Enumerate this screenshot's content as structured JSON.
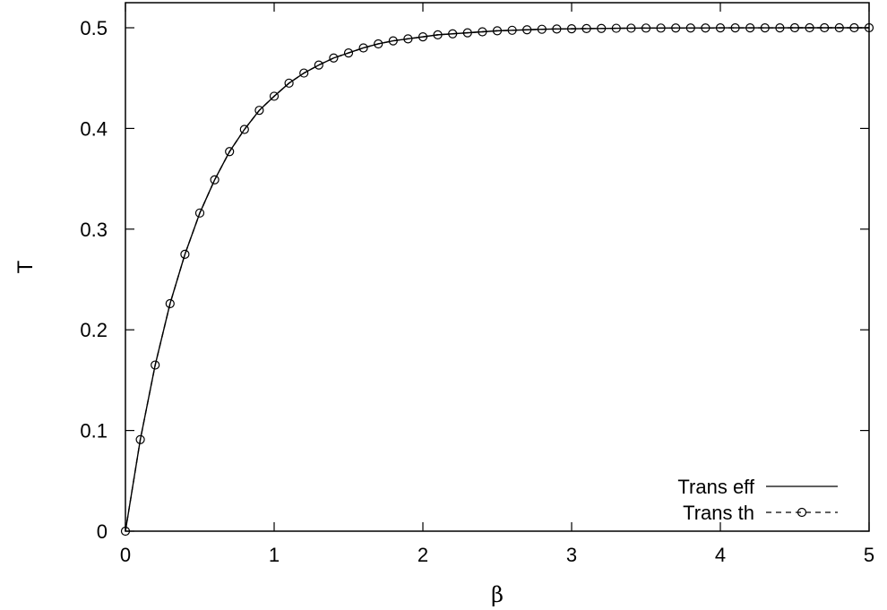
{
  "chart_data": {
    "type": "line",
    "title": "",
    "xlabel": "β",
    "ylabel": "T",
    "xlim": [
      0,
      5
    ],
    "ylim": [
      0,
      0.5
    ],
    "xticks": [
      "0",
      "1",
      "2",
      "3",
      "4",
      "5"
    ],
    "yticks": [
      "0",
      "0.1",
      "0.2",
      "0.3",
      "0.4",
      "0.5"
    ],
    "grid": false,
    "legend_position": "bottom-right",
    "series": [
      {
        "name": "Trans eff",
        "style": "solid",
        "x": [
          0,
          0.1,
          0.2,
          0.3,
          0.4,
          0.5,
          0.6,
          0.7,
          0.8,
          0.9,
          1.0,
          1.1,
          1.2,
          1.3,
          1.4,
          1.5,
          1.6,
          1.7,
          1.8,
          1.9,
          2.0,
          2.1,
          2.2,
          2.3,
          2.4,
          2.5,
          2.6,
          2.7,
          2.8,
          2.9,
          3.0,
          3.1,
          3.2,
          3.3,
          3.4,
          3.5,
          3.6,
          3.7,
          3.8,
          3.9,
          4.0,
          4.1,
          4.2,
          4.3,
          4.4,
          4.5,
          4.6,
          4.7,
          4.8,
          4.9,
          5.0
        ],
        "y": [
          0,
          0.091,
          0.165,
          0.226,
          0.275,
          0.316,
          0.349,
          0.377,
          0.399,
          0.418,
          0.432,
          0.445,
          0.455,
          0.463,
          0.47,
          0.475,
          0.48,
          0.484,
          0.487,
          0.489,
          0.491,
          0.493,
          0.494,
          0.495,
          0.496,
          0.497,
          0.4975,
          0.498,
          0.4985,
          0.4988,
          0.499,
          0.4992,
          0.4993,
          0.4995,
          0.4996,
          0.4997,
          0.4997,
          0.4998,
          0.4998,
          0.4998,
          0.4999,
          0.4999,
          0.4999,
          0.4999,
          0.4999,
          0.5,
          0.5,
          0.5,
          0.5,
          0.5,
          0.5
        ]
      },
      {
        "name": "Trans th",
        "style": "dashed-circles",
        "x": [
          0,
          0.1,
          0.2,
          0.3,
          0.4,
          0.5,
          0.6,
          0.7,
          0.8,
          0.9,
          1.0,
          1.1,
          1.2,
          1.3,
          1.4,
          1.5,
          1.6,
          1.7,
          1.8,
          1.9,
          2.0,
          2.1,
          2.2,
          2.3,
          2.4,
          2.5,
          2.6,
          2.7,
          2.8,
          2.9,
          3.0,
          3.1,
          3.2,
          3.3,
          3.4,
          3.5,
          3.6,
          3.7,
          3.8,
          3.9,
          4.0,
          4.1,
          4.2,
          4.3,
          4.4,
          4.5,
          4.6,
          4.7,
          4.8,
          4.9,
          5.0
        ],
        "y": [
          0,
          0.091,
          0.165,
          0.226,
          0.275,
          0.316,
          0.349,
          0.377,
          0.399,
          0.418,
          0.432,
          0.445,
          0.455,
          0.463,
          0.47,
          0.475,
          0.48,
          0.484,
          0.487,
          0.489,
          0.491,
          0.493,
          0.494,
          0.495,
          0.496,
          0.497,
          0.4975,
          0.498,
          0.4985,
          0.4988,
          0.499,
          0.4992,
          0.4993,
          0.4995,
          0.4996,
          0.4997,
          0.4997,
          0.4998,
          0.4998,
          0.4998,
          0.4999,
          0.4999,
          0.4999,
          0.4999,
          0.4999,
          0.5,
          0.5,
          0.5,
          0.5,
          0.5,
          0.5
        ]
      }
    ]
  }
}
